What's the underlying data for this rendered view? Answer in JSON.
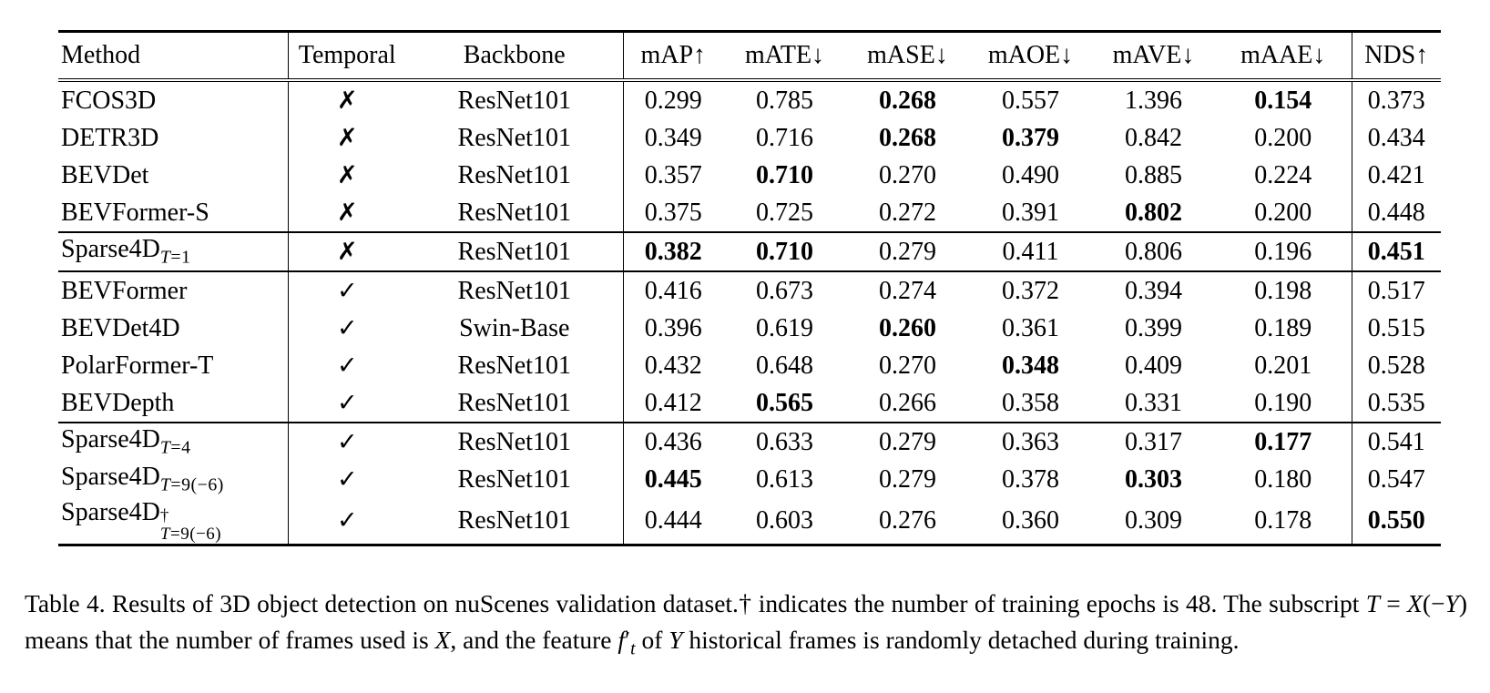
{
  "page": {
    "background": "#ffffff",
    "text_color": "#000000"
  },
  "table": {
    "headers": [
      "Method",
      "Temporal",
      "Backbone",
      "mAP↑",
      "mATE↓",
      "mASE↓",
      "mAOE↓",
      "mAVE↓",
      "mAAE↓",
      "NDS↑"
    ],
    "temporal_marks": {
      "no": "✗",
      "yes": "✓"
    },
    "groups": [
      {
        "rows": [
          {
            "method": {
              "base": "FCOS3D"
            },
            "temporal": "no",
            "backbone": "ResNet101",
            "values": [
              "0.299",
              "0.785",
              "0.268",
              "0.557",
              "1.396",
              "0.154",
              "0.373"
            ],
            "bold": [
              2,
              5
            ]
          },
          {
            "method": {
              "base": "DETR3D"
            },
            "temporal": "no",
            "backbone": "ResNet101",
            "values": [
              "0.349",
              "0.716",
              "0.268",
              "0.379",
              "0.842",
              "0.200",
              "0.434"
            ],
            "bold": [
              2,
              3
            ]
          },
          {
            "method": {
              "base": "BEVDet"
            },
            "temporal": "no",
            "backbone": "ResNet101",
            "values": [
              "0.357",
              "0.710",
              "0.270",
              "0.490",
              "0.885",
              "0.224",
              "0.421"
            ],
            "bold": [
              1
            ]
          },
          {
            "method": {
              "base": "BEVFormer-S"
            },
            "temporal": "no",
            "backbone": "ResNet101",
            "values": [
              "0.375",
              "0.725",
              "0.272",
              "0.391",
              "0.802",
              "0.200",
              "0.448"
            ],
            "bold": [
              4
            ]
          }
        ]
      },
      {
        "rows": [
          {
            "method": {
              "base": "Sparse4D",
              "sub": "T=1"
            },
            "temporal": "no",
            "backbone": "ResNet101",
            "values": [
              "0.382",
              "0.710",
              "0.279",
              "0.411",
              "0.806",
              "0.196",
              "0.451"
            ],
            "bold": [
              0,
              1,
              6
            ]
          }
        ]
      },
      {
        "rows": [
          {
            "method": {
              "base": "BEVFormer"
            },
            "temporal": "yes",
            "backbone": "ResNet101",
            "values": [
              "0.416",
              "0.673",
              "0.274",
              "0.372",
              "0.394",
              "0.198",
              "0.517"
            ],
            "bold": []
          },
          {
            "method": {
              "base": "BEVDet4D"
            },
            "temporal": "yes",
            "backbone": "Swin-Base",
            "values": [
              "0.396",
              "0.619",
              "0.260",
              "0.361",
              "0.399",
              "0.189",
              "0.515"
            ],
            "bold": [
              2
            ]
          },
          {
            "method": {
              "base": "PolarFormer-T"
            },
            "temporal": "yes",
            "backbone": "ResNet101",
            "values": [
              "0.432",
              "0.648",
              "0.270",
              "0.348",
              "0.409",
              "0.201",
              "0.528"
            ],
            "bold": [
              3
            ]
          },
          {
            "method": {
              "base": "BEVDepth"
            },
            "temporal": "yes",
            "backbone": "ResNet101",
            "values": [
              "0.412",
              "0.565",
              "0.266",
              "0.358",
              "0.331",
              "0.190",
              "0.535"
            ],
            "bold": [
              1
            ]
          }
        ]
      },
      {
        "rows": [
          {
            "method": {
              "base": "Sparse4D",
              "sub": "T=4"
            },
            "temporal": "yes",
            "backbone": "ResNet101",
            "values": [
              "0.436",
              "0.633",
              "0.279",
              "0.363",
              "0.317",
              "0.177",
              "0.541"
            ],
            "bold": [
              5
            ]
          },
          {
            "method": {
              "base": "Sparse4D",
              "sub": "T=9(−6)"
            },
            "temporal": "yes",
            "backbone": "ResNet101",
            "values": [
              "0.445",
              "0.613",
              "0.279",
              "0.378",
              "0.303",
              "0.180",
              "0.547"
            ],
            "bold": [
              0,
              4
            ]
          },
          {
            "method": {
              "base": "Sparse4D",
              "sup": "†",
              "sub": "T=9(−6)"
            },
            "temporal": "yes",
            "backbone": "ResNet101",
            "values": [
              "0.444",
              "0.603",
              "0.276",
              "0.360",
              "0.309",
              "0.178",
              "0.550"
            ],
            "bold": [
              6
            ]
          }
        ]
      }
    ]
  },
  "caption": {
    "segments": [
      {
        "t": "Table 4.  Results of 3D object detection on nuScenes validation dataset.† indicates the number of training epochs is 48.  The subscript "
      },
      {
        "t": "T",
        "i": true
      },
      {
        "t": " = "
      },
      {
        "t": "X",
        "i": true
      },
      {
        "t": "(−"
      },
      {
        "t": "Y",
        "i": true
      },
      {
        "t": ") means that the number of frames used is "
      },
      {
        "t": "X",
        "i": true
      },
      {
        "t": ", and the feature "
      },
      {
        "t": "f",
        "i": true
      },
      {
        "t": "′"
      },
      {
        "t": "t",
        "i": true,
        "sub": true
      },
      {
        "t": " of "
      },
      {
        "t": "Y",
        "i": true
      },
      {
        "t": " historical frames is randomly detached during training."
      }
    ]
  }
}
